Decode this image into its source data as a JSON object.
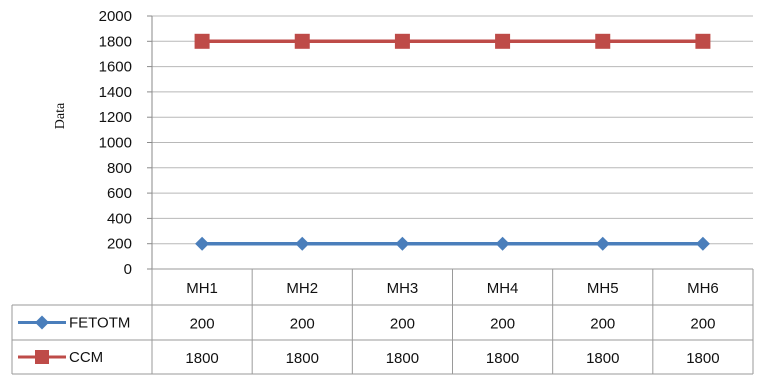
{
  "chart_data": {
    "type": "line",
    "categories": [
      "MH1",
      "MH2",
      "MH3",
      "MH4",
      "MH5",
      "MH6"
    ],
    "series": [
      {
        "name": "FETOTM",
        "values": [
          200,
          200,
          200,
          200,
          200,
          200
        ],
        "color": "#4a7ebb",
        "marker": "diamond"
      },
      {
        "name": "CCM",
        "values": [
          1800,
          1800,
          1800,
          1800,
          1800,
          1800
        ],
        "color": "#be4b48",
        "marker": "square"
      }
    ],
    "title": "",
    "xlabel": "",
    "ylabel": "Data",
    "ylim": [
      0,
      2000
    ],
    "yticks": [
      "0",
      "200",
      "400",
      "600",
      "800",
      "1000",
      "1200",
      "1400",
      "1600",
      "1800",
      "2000"
    ],
    "grid": true,
    "legend": "data-table",
    "table_values": [
      [
        "200",
        "200",
        "200",
        "200",
        "200",
        "200"
      ],
      [
        "1800",
        "1800",
        "1800",
        "1800",
        "1800",
        "1800"
      ]
    ]
  }
}
